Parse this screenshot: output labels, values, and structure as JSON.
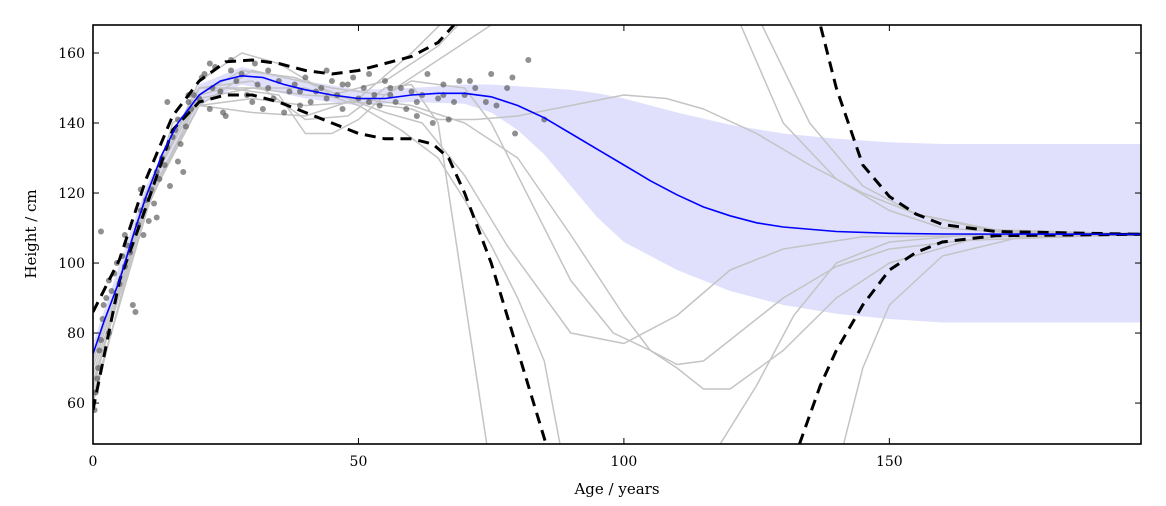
{
  "chart_data": {
    "type": "line",
    "xlabel": "Age / years",
    "ylabel": "Height / cm",
    "xlim": [
      0,
      197.4
    ],
    "ylim": [
      48.3,
      168
    ],
    "xticks": [
      0,
      50,
      100,
      150
    ],
    "yticks": [
      60,
      80,
      100,
      120,
      140,
      160
    ],
    "grid": false,
    "colors": {
      "mean": "#0000ff",
      "band": "#e0e0fc",
      "samples": "#c4c4c4",
      "dashed": "#000000",
      "points": "#555555"
    },
    "mean": {
      "x": [
        0,
        2,
        5,
        8,
        10,
        13,
        16,
        20,
        24,
        28,
        32,
        36,
        40,
        45,
        50,
        55,
        60,
        65,
        70,
        75,
        80,
        85,
        90,
        95,
        100,
        105,
        110,
        115,
        120,
        125,
        130,
        140,
        150,
        160,
        197.4
      ],
      "y": [
        74,
        83,
        95,
        110,
        119,
        131,
        140,
        148,
        152,
        153.5,
        153,
        151,
        149.5,
        148,
        147,
        147,
        148,
        148.5,
        148.5,
        147.5,
        145,
        141.5,
        137,
        132.5,
        128,
        123.5,
        119.5,
        116,
        113.5,
        111.5,
        110.3,
        109,
        108.5,
        108.3,
        108.2
      ]
    },
    "band": {
      "x": [
        0,
        10,
        20,
        28,
        40,
        50,
        60,
        70,
        75,
        80,
        85,
        90,
        95,
        100,
        110,
        120,
        130,
        140,
        150,
        160,
        197.4
      ],
      "upper": [
        77,
        122,
        151,
        156,
        152,
        149.5,
        150,
        151,
        151,
        150.5,
        150,
        149.5,
        148.5,
        147,
        143,
        139.5,
        137,
        135.5,
        134.5,
        134,
        134
      ],
      "lower": [
        71,
        116,
        145,
        151,
        147,
        145,
        146,
        145.5,
        143,
        138,
        131,
        122,
        113,
        106,
        98,
        92,
        88,
        85.5,
        84,
        83,
        83
      ]
    },
    "dashed": [
      {
        "x": [
          0,
          5,
          10,
          15,
          20,
          25,
          30,
          35,
          40,
          45,
          50,
          55,
          60,
          65,
          68,
          75,
          130,
          137,
          140,
          145,
          150,
          155,
          160,
          170,
          197.4
        ],
        "y": [
          86,
          101,
          124,
          142,
          152,
          157.5,
          158,
          157,
          155,
          154,
          155,
          157,
          159,
          163,
          168,
          250,
          250,
          168,
          150,
          128,
          119,
          114,
          111,
          109,
          108.2
        ]
      },
      {
        "x": [
          0,
          5,
          10,
          15,
          20,
          25,
          30,
          35,
          40,
          45,
          50,
          55,
          60,
          64,
          67,
          70,
          75,
          80,
          83,
          87,
          130,
          133,
          137,
          140,
          145,
          150,
          155,
          160,
          170,
          197.4
        ],
        "y": [
          58,
          95,
          116,
          138,
          146,
          148,
          148,
          146,
          143,
          140,
          137,
          135.5,
          135.5,
          134,
          130,
          120,
          100,
          75,
          60,
          40,
          30,
          48,
          65,
          75,
          88,
          98,
          103,
          106,
          107.8,
          108.2
        ]
      }
    ],
    "samples": [
      {
        "x": [
          0,
          10,
          20,
          28,
          35,
          45,
          55,
          65,
          70,
          80,
          118,
          122,
          130,
          140,
          150,
          160,
          175,
          197.4
        ],
        "y": [
          60,
          118,
          152,
          160,
          157,
          148,
          152,
          162,
          170,
          220,
          220,
          168,
          140,
          124,
          115,
          110,
          108.5,
          108.2
        ]
      },
      {
        "x": [
          0,
          10,
          20,
          28,
          38,
          48,
          55,
          62,
          70,
          78,
          90,
          100,
          110,
          120,
          130,
          145,
          197.4
        ],
        "y": [
          62,
          115,
          148,
          155,
          153,
          147,
          143,
          140,
          125,
          105,
          80,
          77,
          85,
          98,
          104,
          107.5,
          108.2
        ]
      },
      {
        "x": [
          0,
          10,
          20,
          30,
          40,
          48,
          55,
          60,
          65,
          68,
          72,
          75,
          140,
          145,
          150,
          160,
          175,
          197.4
        ],
        "y": [
          65,
          120,
          150,
          152,
          141,
          142,
          150,
          151,
          140,
          110,
          70,
          40,
          40,
          70,
          88,
          102,
          107.5,
          108.2
        ]
      },
      {
        "x": [
          0,
          10,
          20,
          30,
          40,
          50,
          60,
          70,
          80,
          90,
          100,
          105,
          110,
          115,
          120,
          130,
          140,
          150,
          170,
          197.4
        ],
        "y": [
          68,
          117,
          147,
          150,
          148,
          147,
          145,
          140,
          130,
          108,
          85,
          75,
          71,
          72,
          78,
          90,
          99,
          104,
          107.5,
          108.2
        ]
      },
      {
        "x": [
          0,
          10,
          20,
          30,
          40,
          50,
          60,
          65,
          72,
          80,
          90,
          100,
          108,
          115,
          125,
          135,
          145,
          155,
          170,
          197.4
        ],
        "y": [
          70,
          118,
          145,
          147,
          145,
          146,
          144,
          141,
          141,
          142,
          145,
          148,
          147,
          144,
          137,
          128,
          120,
          114,
          109.5,
          108.2
        ]
      },
      {
        "x": [
          0,
          10,
          20,
          25,
          35,
          40,
          45,
          50,
          55,
          60,
          70,
          75,
          80,
          85,
          90,
          98,
          105,
          110,
          115,
          120,
          130,
          140,
          150,
          165,
          197.4
        ],
        "y": [
          72,
          120,
          148,
          150,
          148,
          137,
          137,
          141,
          148,
          152,
          150,
          140,
          125,
          110,
          95,
          80,
          75,
          70,
          64,
          64,
          75,
          90,
          100,
          106.5,
          108.2
        ]
      },
      {
        "x": [
          0,
          10,
          20,
          30,
          40,
          50,
          60,
          70,
          80,
          121,
          126,
          135,
          145,
          155,
          170,
          197.4
        ],
        "y": [
          66,
          116,
          145,
          143,
          142,
          147,
          160,
          175,
          230,
          230,
          168,
          140,
          122,
          114,
          109,
          108.2
        ]
      },
      {
        "x": [
          0,
          10,
          20,
          30,
          40,
          50,
          58,
          65,
          70,
          75,
          80,
          85,
          88,
          90,
          110,
          118,
          125,
          132,
          140,
          150,
          165,
          197.4
        ],
        "y": [
          64,
          120,
          150,
          150,
          150,
          145,
          138,
          130,
          118,
          105,
          90,
          72,
          48,
          30,
          30,
          48,
          65,
          85,
          100,
          106,
          108,
          108.2
        ]
      },
      {
        "x": [
          0,
          15,
          30,
          45,
          55,
          65,
          75,
          80,
          83
        ],
        "y": [
          62,
          140,
          155,
          150,
          148,
          158,
          168,
          176,
          180
        ]
      }
    ],
    "points": [
      [
        0.3,
        58
      ],
      [
        0.5,
        63
      ],
      [
        0.8,
        67
      ],
      [
        1,
        70
      ],
      [
        1.2,
        75
      ],
      [
        1.5,
        78
      ],
      [
        1.8,
        84
      ],
      [
        2,
        88
      ],
      [
        2.5,
        90
      ],
      [
        3,
        95
      ],
      [
        3.5,
        92
      ],
      [
        4,
        97
      ],
      [
        4.5,
        100
      ],
      [
        5,
        94
      ],
      [
        5.5,
        102
      ],
      [
        6,
        99
      ],
      [
        6.5,
        105
      ],
      [
        7,
        103
      ],
      [
        7.5,
        88
      ],
      [
        8,
        86
      ],
      [
        1.5,
        109
      ],
      [
        8.5,
        111
      ],
      [
        9,
        115
      ],
      [
        9.5,
        108
      ],
      [
        10,
        118
      ],
      [
        10.5,
        112
      ],
      [
        11,
        121
      ],
      [
        11.5,
        117
      ],
      [
        12,
        126
      ],
      [
        12.5,
        124
      ],
      [
        13,
        130
      ],
      [
        13.5,
        128
      ],
      [
        14,
        133
      ],
      [
        14.5,
        122
      ],
      [
        15,
        136
      ],
      [
        15.5,
        138
      ],
      [
        16,
        141
      ],
      [
        16.5,
        134
      ],
      [
        17,
        126
      ],
      [
        17.5,
        139
      ],
      [
        18,
        146
      ],
      [
        18.5,
        144
      ],
      [
        19,
        148
      ],
      [
        20,
        147
      ],
      [
        20.5,
        153
      ],
      [
        21,
        154
      ],
      [
        22,
        157
      ],
      [
        22.5,
        150
      ],
      [
        23,
        156
      ],
      [
        24,
        149
      ],
      [
        24.5,
        143
      ],
      [
        25,
        142
      ],
      [
        26,
        155
      ],
      [
        27,
        152
      ],
      [
        28,
        154
      ],
      [
        29,
        148
      ],
      [
        30,
        146
      ],
      [
        30.5,
        157
      ],
      [
        31,
        151
      ],
      [
        32,
        144
      ],
      [
        33,
        150
      ],
      [
        34,
        147
      ],
      [
        35,
        152
      ],
      [
        36,
        143
      ],
      [
        37,
        149
      ],
      [
        38,
        151
      ],
      [
        39,
        145
      ],
      [
        40,
        153
      ],
      [
        41,
        146
      ],
      [
        42,
        149
      ],
      [
        43,
        150
      ],
      [
        44,
        147
      ],
      [
        45,
        152
      ],
      [
        46,
        148
      ],
      [
        47,
        144
      ],
      [
        48,
        151
      ],
      [
        49,
        153
      ],
      [
        50,
        147
      ],
      [
        51,
        150
      ],
      [
        52,
        146
      ],
      [
        53,
        148
      ],
      [
        54,
        145
      ],
      [
        55,
        152
      ],
      [
        56,
        148
      ],
      [
        57,
        146
      ],
      [
        58,
        150
      ],
      [
        59,
        144
      ],
      [
        60,
        149
      ],
      [
        61,
        142
      ],
      [
        62,
        148
      ],
      [
        63,
        154
      ],
      [
        64,
        140
      ],
      [
        65,
        147
      ],
      [
        66,
        151
      ],
      [
        67,
        141
      ],
      [
        68,
        146
      ],
      [
        69,
        152
      ],
      [
        70,
        148
      ],
      [
        72,
        150
      ],
      [
        74,
        146
      ],
      [
        75,
        154
      ],
      [
        76,
        145
      ],
      [
        78,
        150
      ],
      [
        79,
        153
      ],
      [
        79.5,
        137
      ],
      [
        82,
        158
      ],
      [
        85,
        141
      ],
      [
        14,
        146
      ],
      [
        18,
        148
      ],
      [
        22,
        144
      ],
      [
        26,
        158
      ],
      [
        33,
        155
      ],
      [
        39,
        149
      ],
      [
        44,
        155
      ],
      [
        47,
        151
      ],
      [
        52,
        154
      ],
      [
        56,
        150
      ],
      [
        61,
        146
      ],
      [
        66,
        148
      ],
      [
        71,
        152
      ],
      [
        3,
        80
      ],
      [
        6,
        108
      ],
      [
        9,
        121
      ],
      [
        12,
        113
      ],
      [
        16,
        129
      ]
    ]
  }
}
